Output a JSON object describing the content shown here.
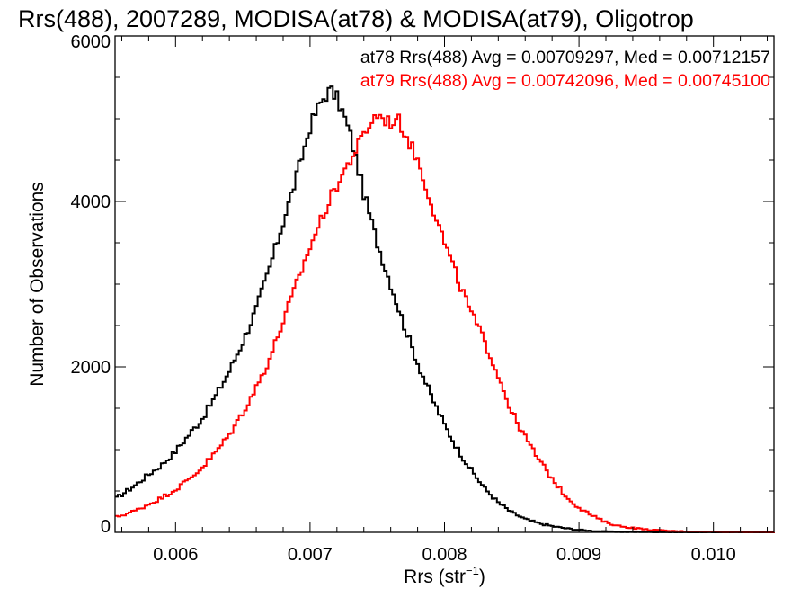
{
  "chart_data": {
    "type": "histogram",
    "title": "Rrs(488), 2007289, MODISA(at78) & MODISA(at79), Oligotrop",
    "xlabel": "Rrs (str",
    "xlabel_sup": "-1",
    "xlabel_close": ")",
    "ylabel": "Number of Observations",
    "xlim": [
      0.00555,
      0.01045
    ],
    "ylim": [
      0,
      6000
    ],
    "xticks": [
      0.006,
      0.007,
      0.008,
      0.009,
      0.01
    ],
    "xtick_labels": [
      "0.006",
      "0.007",
      "0.008",
      "0.009",
      "0.010"
    ],
    "yticks": [
      0,
      2000,
      4000,
      6000
    ],
    "ytick_labels": [
      "0",
      "2000",
      "4000",
      "6000"
    ],
    "legend_position": "top-right",
    "legend": [
      "at78 Rrs(488) Avg = 0.00709297, Med = 0.00712157",
      "at79 Rrs(488) Avg = 0.00742096, Med = 0.00745100"
    ],
    "series": [
      {
        "color": "#000000",
        "x": [
          0.00555,
          0.0057,
          0.0058,
          0.0059,
          0.006,
          0.0061,
          0.0062,
          0.0063,
          0.0064,
          0.0065,
          0.0066,
          0.0067,
          0.0068,
          0.0069,
          0.007,
          0.00705,
          0.0071,
          0.00715,
          0.0072,
          0.00725,
          0.0073,
          0.00735,
          0.0074,
          0.0075,
          0.0076,
          0.0077,
          0.0078,
          0.0079,
          0.008,
          0.0081,
          0.0082,
          0.0083,
          0.0084,
          0.0085,
          0.0086,
          0.0087,
          0.0088,
          0.0089,
          0.009,
          0.0091,
          0.0092,
          0.0093,
          0.0095,
          0.0097,
          0.0099,
          0.01045
        ],
        "y": [
          400,
          570,
          700,
          820,
          980,
          1180,
          1380,
          1650,
          1950,
          2300,
          2700,
          3200,
          3750,
          4300,
          4900,
          5100,
          5250,
          5350,
          5250,
          5050,
          4800,
          4450,
          4100,
          3500,
          3000,
          2500,
          2050,
          1650,
          1300,
          1000,
          750,
          530,
          360,
          240,
          160,
          110,
          75,
          50,
          30,
          18,
          10,
          6,
          3,
          1,
          0,
          0
        ]
      },
      {
        "color": "#ff0000",
        "x": [
          0.00555,
          0.0057,
          0.0058,
          0.0059,
          0.006,
          0.0061,
          0.0062,
          0.0063,
          0.0064,
          0.0065,
          0.0066,
          0.0067,
          0.0068,
          0.0069,
          0.007,
          0.0071,
          0.0072,
          0.0073,
          0.0074,
          0.00745,
          0.0075,
          0.00755,
          0.0076,
          0.00765,
          0.0077,
          0.0078,
          0.0079,
          0.008,
          0.0081,
          0.0082,
          0.0083,
          0.0084,
          0.0085,
          0.0086,
          0.0087,
          0.0088,
          0.0089,
          0.009,
          0.0091,
          0.0092,
          0.0093,
          0.0095,
          0.0097,
          0.0099,
          0.0101,
          0.01045
        ],
        "y": [
          180,
          260,
          340,
          420,
          520,
          640,
          790,
          970,
          1180,
          1450,
          1750,
          2100,
          2550,
          3000,
          3450,
          3850,
          4200,
          4500,
          4800,
          4950,
          5050,
          5000,
          4950,
          5000,
          4850,
          4500,
          4000,
          3500,
          3050,
          2650,
          2300,
          1900,
          1450,
          1150,
          880,
          650,
          440,
          300,
          200,
          120,
          75,
          35,
          15,
          8,
          3,
          0
        ]
      }
    ]
  }
}
